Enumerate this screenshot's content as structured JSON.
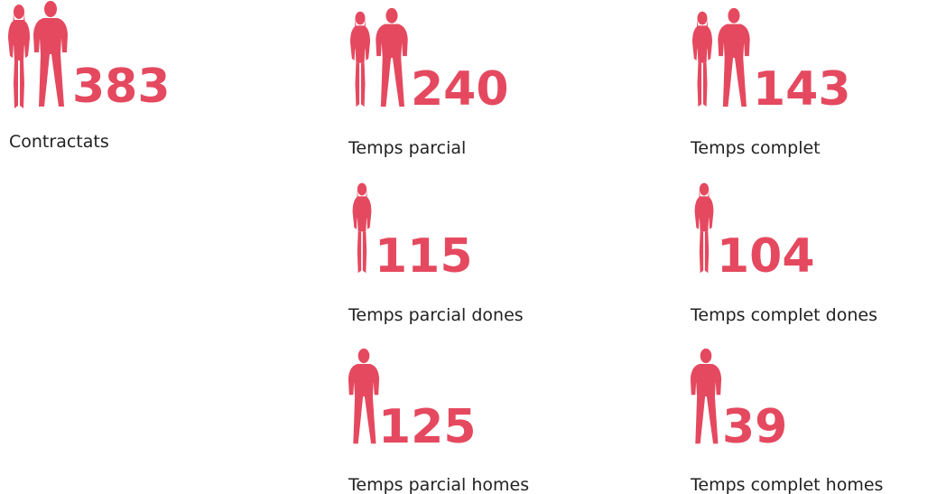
{
  "stats": [
    {
      "value": "383",
      "label": "Contractats"
    },
    {
      "value": "240",
      "label": "Temps parcial"
    },
    {
      "value": "143",
      "label": "Temps complet"
    },
    {
      "value": "115",
      "label": "Temps parcial dones"
    },
    {
      "value": "104",
      "label": "Temps complet dones"
    },
    {
      "value": "125",
      "label": "Temps parcial homes"
    },
    {
      "value": "39",
      "label": "Temps complet homes"
    }
  ]
}
